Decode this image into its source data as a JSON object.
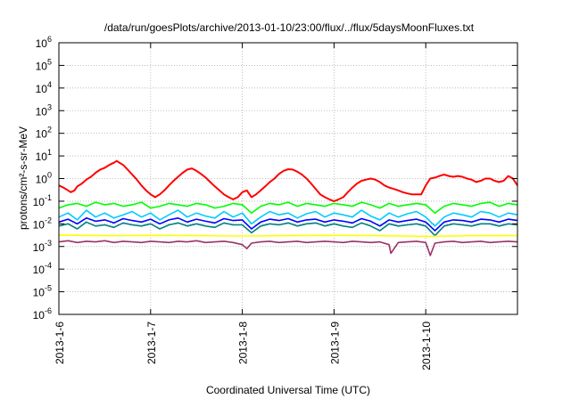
{
  "chart_data": {
    "type": "line",
    "title": "/data/run/goesPlots/archive/2013-01-10/23:00/flux/../flux/5daysMoonFluxes.txt",
    "xlabel": "Coordinated Universal Time (UTC)",
    "ylabel": "protons/cm²-s-sr-MeV",
    "y_scale": "log",
    "ylim": [
      1e-06,
      1000000.0
    ],
    "xlim": [
      "2013-01-06",
      "2013-01-11"
    ],
    "y_ticks": [
      {
        "base": "10",
        "exp": "-6"
      },
      {
        "base": "10",
        "exp": "-5"
      },
      {
        "base": "10",
        "exp": "-4"
      },
      {
        "base": "10",
        "exp": "-3"
      },
      {
        "base": "10",
        "exp": "-2"
      },
      {
        "base": "10",
        "exp": "-1"
      },
      {
        "base": "10",
        "exp": "0"
      },
      {
        "base": "10",
        "exp": "1"
      },
      {
        "base": "10",
        "exp": "2"
      },
      {
        "base": "10",
        "exp": "3"
      },
      {
        "base": "10",
        "exp": "4"
      },
      {
        "base": "10",
        "exp": "5"
      },
      {
        "base": "10",
        "exp": "6"
      }
    ],
    "x_ticks": [
      "2013-1-6",
      "2013-1-7",
      "2013-1-8",
      "2013-1-9",
      "2013-1-10"
    ],
    "grid": true,
    "legend": "none",
    "series": [
      {
        "color": "#ff0000",
        "x": [
          6.0,
          6.05,
          6.1,
          6.13,
          6.17,
          6.2,
          6.25,
          6.3,
          6.35,
          6.4,
          6.45,
          6.5,
          6.55,
          6.6,
          6.63,
          6.66,
          6.7,
          6.75,
          6.8,
          6.85,
          6.9,
          6.95,
          7.0,
          7.05,
          7.1,
          7.15,
          7.2,
          7.25,
          7.3,
          7.35,
          7.4,
          7.45,
          7.5,
          7.55,
          7.6,
          7.65,
          7.7,
          7.75,
          7.8,
          7.85,
          7.9,
          7.95,
          8.0,
          8.05,
          8.1,
          8.15,
          8.2,
          8.25,
          8.3,
          8.35,
          8.4,
          8.45,
          8.5,
          8.55,
          8.6,
          8.65,
          8.7,
          8.75,
          8.8,
          8.85,
          8.9,
          8.95,
          9.0,
          9.05,
          9.1,
          9.15,
          9.2,
          9.25,
          9.3,
          9.35,
          9.4,
          9.45,
          9.5,
          9.55,
          9.6,
          9.65,
          9.7,
          9.75,
          9.8,
          9.85,
          9.9,
          9.95,
          10.0,
          10.05,
          10.1,
          10.15,
          10.2,
          10.25,
          10.3,
          10.35,
          10.4,
          10.45,
          10.5,
          10.55,
          10.6,
          10.65,
          10.7,
          10.75,
          10.8,
          10.85,
          10.9,
          10.95,
          11.0
        ],
        "y": [
          0.5,
          0.4,
          0.3,
          0.25,
          0.3,
          0.45,
          0.6,
          0.9,
          1.2,
          1.8,
          2.5,
          3.0,
          4.0,
          5.0,
          6.0,
          5.0,
          4.0,
          2.5,
          1.5,
          0.9,
          0.5,
          0.3,
          0.2,
          0.15,
          0.2,
          0.3,
          0.5,
          0.8,
          1.2,
          1.8,
          2.5,
          2.8,
          2.2,
          1.6,
          1.1,
          0.7,
          0.45,
          0.3,
          0.2,
          0.15,
          0.12,
          0.15,
          0.25,
          0.3,
          0.15,
          0.2,
          0.3,
          0.45,
          0.7,
          1.0,
          1.6,
          2.2,
          2.6,
          2.5,
          2.0,
          1.5,
          1.0,
          0.6,
          0.35,
          0.2,
          0.15,
          0.12,
          0.1,
          0.12,
          0.15,
          0.25,
          0.4,
          0.6,
          0.8,
          0.9,
          1.0,
          0.9,
          0.7,
          0.5,
          0.4,
          0.35,
          0.3,
          0.25,
          0.22,
          0.2,
          0.2,
          0.2,
          0.5,
          1.0,
          1.1,
          1.3,
          1.5,
          1.3,
          1.2,
          1.3,
          1.2,
          1.0,
          0.9,
          0.7,
          0.8,
          1.0,
          1.0,
          0.8,
          0.7,
          0.8,
          1.3,
          1.0,
          0.5
        ]
      },
      {
        "color": "#00ff00",
        "x": [
          6.0,
          6.1,
          6.2,
          6.3,
          6.4,
          6.5,
          6.6,
          6.7,
          6.8,
          6.9,
          7.0,
          7.1,
          7.2,
          7.3,
          7.4,
          7.5,
          7.6,
          7.7,
          7.8,
          7.9,
          8.0,
          8.1,
          8.2,
          8.3,
          8.4,
          8.5,
          8.6,
          8.7,
          8.8,
          8.9,
          9.0,
          9.1,
          9.2,
          9.3,
          9.4,
          9.5,
          9.6,
          9.7,
          9.8,
          9.9,
          10.0,
          10.1,
          10.2,
          10.3,
          10.4,
          10.5,
          10.6,
          10.7,
          10.8,
          10.9,
          11.0
        ],
        "y": [
          0.05,
          0.07,
          0.08,
          0.06,
          0.09,
          0.07,
          0.08,
          0.06,
          0.07,
          0.09,
          0.05,
          0.06,
          0.08,
          0.07,
          0.06,
          0.08,
          0.07,
          0.05,
          0.06,
          0.08,
          0.07,
          0.03,
          0.06,
          0.08,
          0.07,
          0.09,
          0.06,
          0.08,
          0.07,
          0.06,
          0.08,
          0.07,
          0.06,
          0.09,
          0.07,
          0.05,
          0.08,
          0.06,
          0.07,
          0.08,
          0.07,
          0.03,
          0.06,
          0.08,
          0.07,
          0.06,
          0.08,
          0.09,
          0.06,
          0.08,
          0.07
        ]
      },
      {
        "color": "#00ccff",
        "x": [
          6.0,
          6.1,
          6.2,
          6.3,
          6.4,
          6.5,
          6.6,
          6.7,
          6.8,
          6.9,
          7.0,
          7.1,
          7.2,
          7.3,
          7.4,
          7.5,
          7.6,
          7.7,
          7.8,
          7.9,
          8.0,
          8.1,
          8.2,
          8.3,
          8.4,
          8.5,
          8.6,
          8.7,
          8.8,
          8.9,
          9.0,
          9.1,
          9.2,
          9.3,
          9.4,
          9.5,
          9.6,
          9.7,
          9.8,
          9.9,
          10.0,
          10.1,
          10.2,
          10.3,
          10.4,
          10.5,
          10.6,
          10.7,
          10.8,
          10.9,
          11.0
        ],
        "y": [
          0.02,
          0.03,
          0.015,
          0.04,
          0.02,
          0.03,
          0.018,
          0.025,
          0.035,
          0.02,
          0.03,
          0.015,
          0.025,
          0.04,
          0.02,
          0.03,
          0.022,
          0.018,
          0.035,
          0.02,
          0.03,
          0.01,
          0.02,
          0.035,
          0.025,
          0.03,
          0.018,
          0.028,
          0.035,
          0.02,
          0.03,
          0.025,
          0.02,
          0.04,
          0.022,
          0.015,
          0.03,
          0.02,
          0.028,
          0.035,
          0.02,
          0.008,
          0.02,
          0.03,
          0.025,
          0.02,
          0.035,
          0.03,
          0.02,
          0.03,
          0.025
        ]
      },
      {
        "color": "#0000ff",
        "x": [
          6.0,
          6.1,
          6.2,
          6.3,
          6.4,
          6.5,
          6.6,
          6.7,
          6.8,
          6.9,
          7.0,
          7.1,
          7.2,
          7.3,
          7.4,
          7.5,
          7.6,
          7.7,
          7.8,
          7.9,
          8.0,
          8.1,
          8.2,
          8.3,
          8.4,
          8.5,
          8.6,
          8.7,
          8.8,
          8.9,
          9.0,
          9.1,
          9.2,
          9.3,
          9.4,
          9.5,
          9.6,
          9.7,
          9.8,
          9.9,
          10.0,
          10.1,
          10.2,
          10.3,
          10.4,
          10.5,
          10.6,
          10.7,
          10.8,
          10.9,
          11.0
        ],
        "y": [
          0.012,
          0.016,
          0.01,
          0.018,
          0.013,
          0.015,
          0.011,
          0.017,
          0.014,
          0.012,
          0.016,
          0.01,
          0.015,
          0.018,
          0.012,
          0.016,
          0.013,
          0.011,
          0.017,
          0.014,
          0.015,
          0.006,
          0.012,
          0.016,
          0.014,
          0.017,
          0.012,
          0.015,
          0.016,
          0.012,
          0.015,
          0.013,
          0.011,
          0.017,
          0.013,
          0.008,
          0.015,
          0.012,
          0.014,
          0.016,
          0.012,
          0.005,
          0.012,
          0.015,
          0.014,
          0.012,
          0.016,
          0.015,
          0.012,
          0.016,
          0.014
        ]
      },
      {
        "color": "#008080",
        "x": [
          6.0,
          6.1,
          6.2,
          6.3,
          6.4,
          6.5,
          6.6,
          6.7,
          6.8,
          6.9,
          7.0,
          7.1,
          7.2,
          7.3,
          7.4,
          7.5,
          7.6,
          7.7,
          7.8,
          7.9,
          8.0,
          8.1,
          8.2,
          8.3,
          8.4,
          8.5,
          8.6,
          8.7,
          8.8,
          8.9,
          9.0,
          9.1,
          9.2,
          9.3,
          9.4,
          9.5,
          9.6,
          9.7,
          9.8,
          9.9,
          10.0,
          10.1,
          10.2,
          10.3,
          10.4,
          10.5,
          10.6,
          10.7,
          10.8,
          10.9,
          11.0
        ],
        "y": [
          0.008,
          0.01,
          0.006,
          0.012,
          0.008,
          0.009,
          0.007,
          0.011,
          0.009,
          0.008,
          0.01,
          0.006,
          0.009,
          0.011,
          0.008,
          0.01,
          0.008,
          0.007,
          0.011,
          0.009,
          0.009,
          0.004,
          0.008,
          0.01,
          0.009,
          0.011,
          0.008,
          0.01,
          0.011,
          0.008,
          0.01,
          0.008,
          0.007,
          0.011,
          0.008,
          0.005,
          0.01,
          0.008,
          0.009,
          0.01,
          0.008,
          0.003,
          0.008,
          0.01,
          0.009,
          0.008,
          0.01,
          0.01,
          0.008,
          0.01,
          0.009
        ]
      },
      {
        "color": "#ffff00",
        "x": [
          6.0,
          6.5,
          7.0,
          7.5,
          8.0,
          8.5,
          9.0,
          9.5,
          10.0,
          10.5,
          11.0
        ],
        "y": [
          0.0032,
          0.003,
          0.0031,
          0.003,
          0.0029,
          0.003,
          0.0031,
          0.003,
          0.0028,
          0.003,
          0.003
        ]
      },
      {
        "color": "#993366",
        "x": [
          6.0,
          6.1,
          6.2,
          6.3,
          6.4,
          6.5,
          6.6,
          6.7,
          6.8,
          6.9,
          7.0,
          7.1,
          7.2,
          7.3,
          7.4,
          7.5,
          7.6,
          7.7,
          7.8,
          7.9,
          8.0,
          8.05,
          8.1,
          8.2,
          8.3,
          8.4,
          8.5,
          8.6,
          8.7,
          8.8,
          8.9,
          9.0,
          9.1,
          9.2,
          9.3,
          9.4,
          9.5,
          9.6,
          9.62,
          9.7,
          9.8,
          9.9,
          10.0,
          10.05,
          10.1,
          10.2,
          10.3,
          10.4,
          10.5,
          10.6,
          10.7,
          10.8,
          10.9,
          11.0
        ],
        "y": [
          0.0016,
          0.0018,
          0.0015,
          0.0017,
          0.0016,
          0.0018,
          0.0015,
          0.0017,
          0.0016,
          0.0015,
          0.0017,
          0.0016,
          0.0015,
          0.0017,
          0.0016,
          0.0018,
          0.0015,
          0.0016,
          0.0017,
          0.0015,
          0.0012,
          0.0008,
          0.0014,
          0.0016,
          0.0017,
          0.0015,
          0.0016,
          0.0017,
          0.0015,
          0.0016,
          0.0017,
          0.0016,
          0.0015,
          0.0017,
          0.0016,
          0.0015,
          0.0016,
          0.0012,
          0.0005,
          0.0015,
          0.0016,
          0.0017,
          0.0015,
          0.0004,
          0.0014,
          0.0016,
          0.0017,
          0.0015,
          0.0016,
          0.0017,
          0.0015,
          0.0016,
          0.0017,
          0.0016
        ]
      }
    ]
  }
}
